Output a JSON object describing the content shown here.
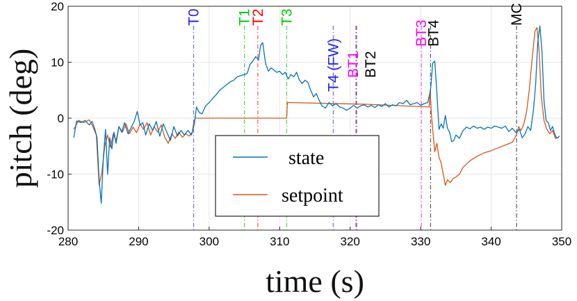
{
  "chart_data": {
    "type": "line",
    "xlabel": "time (s)",
    "ylabel": "pitch (deg)",
    "xlim": [
      280,
      350
    ],
    "ylim": [
      -20,
      20
    ],
    "xticks": [
      280,
      290,
      300,
      310,
      320,
      330,
      340,
      350
    ],
    "yticks": [
      20,
      10,
      0,
      -10,
      -20
    ],
    "grid": true,
    "legend_position": "bottom-center",
    "series": [
      {
        "name": "state",
        "color": "#0072BD",
        "x": [
          280.8,
          281.2,
          281.8,
          282.4,
          283.0,
          283.4,
          283.8,
          284.1,
          284.4,
          284.7,
          285.0,
          285.3,
          285.6,
          285.9,
          286.2,
          286.5,
          286.8,
          287.2,
          287.6,
          288.0,
          288.5,
          289.0,
          289.4,
          289.8,
          290.2,
          290.6,
          291.0,
          291.5,
          292.0,
          292.5,
          293.0,
          293.5,
          294.0,
          294.5,
          295.0,
          295.5,
          296.0,
          296.5,
          297.0,
          297.5,
          297.9,
          298.2,
          298.6,
          299.0,
          299.5,
          300.0,
          300.5,
          301.0,
          301.5,
          302.0,
          302.5,
          303.0,
          303.5,
          304.0,
          304.5,
          305.0,
          305.4,
          305.8,
          306.2,
          306.6,
          307.0,
          307.3,
          307.6,
          308.0,
          308.4,
          308.8,
          309.2,
          309.6,
          310.0,
          310.4,
          310.8,
          311.2,
          311.6,
          312.0,
          312.4,
          312.8,
          313.2,
          313.6,
          314.0,
          314.4,
          314.8,
          315.2,
          315.6,
          316.0,
          316.5,
          317.0,
          317.5,
          318.0,
          318.5,
          319.0,
          319.5,
          320.0,
          320.5,
          321.0,
          321.5,
          322.0,
          322.5,
          323.0,
          323.5,
          324.0,
          324.5,
          325.0,
          325.5,
          326.0,
          326.5,
          327.0,
          327.5,
          328.0,
          328.5,
          329.0,
          329.5,
          330.0,
          330.5,
          331.0,
          331.4,
          331.7,
          332.0,
          332.3,
          332.6,
          332.9,
          333.2,
          333.5,
          333.8,
          334.1,
          334.4,
          334.7,
          335.0,
          335.5,
          336.0,
          336.5,
          337.0,
          337.5,
          338.0,
          338.5,
          339.0,
          339.5,
          340.0,
          340.5,
          341.0,
          341.5,
          342.0,
          342.5,
          343.0,
          343.5,
          344.0,
          344.4,
          344.8,
          345.2,
          345.6,
          346.0,
          346.3,
          346.6,
          346.9,
          347.2,
          347.5,
          347.8,
          348.1,
          348.4,
          348.7,
          349.0,
          349.3,
          349.7
        ],
        "y": [
          -3.5,
          -0.5,
          -0.8,
          -0.4,
          -1.2,
          -0.6,
          -2.0,
          -3.5,
          -11.0,
          -15.2,
          -7.0,
          -2.0,
          -10.0,
          -3.5,
          -5.5,
          -2.5,
          -4.5,
          -1.5,
          -2.5,
          -0.8,
          -2.8,
          -1.5,
          -0.5,
          1.2,
          -1.2,
          -0.8,
          -3.0,
          -1.0,
          -2.2,
          -0.6,
          -3.2,
          -1.0,
          -2.5,
          -4.0,
          -1.5,
          -3.2,
          -2.2,
          -3.0,
          -2.2,
          -3.0,
          -1.0,
          2.0,
          1.0,
          0.8,
          2.2,
          2.8,
          3.5,
          4.2,
          5.0,
          5.5,
          6.0,
          6.5,
          6.8,
          7.4,
          7.6,
          7.8,
          8.0,
          9.6,
          10.2,
          11.0,
          10.4,
          13.0,
          13.5,
          9.8,
          8.4,
          9.0,
          8.6,
          8.2,
          8.4,
          7.8,
          8.2,
          7.0,
          7.8,
          7.4,
          8.2,
          6.8,
          6.2,
          6.8,
          6.4,
          5.0,
          3.8,
          4.4,
          3.2,
          2.2,
          1.8,
          2.8,
          2.2,
          2.6,
          2.0,
          1.8,
          1.4,
          1.8,
          2.3,
          1.8,
          2.2,
          2.4,
          2.0,
          2.3,
          1.9,
          2.4,
          2.1,
          2.6,
          2.0,
          2.4,
          2.2,
          2.8,
          2.6,
          3.2,
          2.4,
          2.6,
          2.8,
          2.3,
          2.6,
          2.8,
          5.0,
          9.8,
          10.2,
          4.5,
          -2.0,
          -1.0,
          -1.8,
          0.5,
          -1.8,
          -2.5,
          -4.2,
          -4.0,
          -3.0,
          -3.6,
          -2.2,
          -1.6,
          -1.9,
          -1.4,
          -1.8,
          -1.6,
          -2.0,
          -1.6,
          -1.8,
          -1.4,
          -1.6,
          -1.8,
          -1.4,
          -2.4,
          -1.8,
          -2.6,
          -2.0,
          -3.5,
          -2.8,
          -1.5,
          -2.2,
          1.5,
          6.0,
          13.5,
          16.5,
          12.0,
          3.0,
          -0.5,
          -0.8,
          -2.2,
          -1.5,
          -2.8,
          -3.6,
          -3.2
        ]
      },
      {
        "name": "setpoint",
        "color": "#D95319",
        "x": [
          280.8,
          281.5,
          282.2,
          283.0,
          283.5,
          284.0,
          284.4,
          284.8,
          285.2,
          285.6,
          286.0,
          286.4,
          286.8,
          287.2,
          287.7,
          288.2,
          288.7,
          289.2,
          289.7,
          290.2,
          290.7,
          291.2,
          291.7,
          292.2,
          292.7,
          293.2,
          293.7,
          294.2,
          294.7,
          295.2,
          295.7,
          296.2,
          296.7,
          297.2,
          297.6,
          297.8,
          298.0,
          311.0,
          311.1,
          322.0,
          331.2,
          331.35,
          331.5,
          331.7,
          332.0,
          332.3,
          332.6,
          332.9,
          333.2,
          333.5,
          333.8,
          334.2,
          334.6,
          335.0,
          335.5,
          336.0,
          337.0,
          338.0,
          339.0,
          340.0,
          341.0,
          342.0,
          343.0,
          343.5,
          343.7,
          343.9,
          344.2,
          344.6,
          345.0,
          345.4,
          345.8,
          346.2,
          346.5,
          346.8,
          347.1,
          347.5,
          347.9,
          348.3,
          348.7,
          349.1,
          349.6
        ],
        "y": [
          -2.0,
          -0.4,
          -0.8,
          -0.3,
          -1.5,
          -3.0,
          -12.0,
          -9.5,
          -5.0,
          -3.0,
          -5.2,
          -2.8,
          -4.0,
          -1.5,
          -2.5,
          -1.0,
          -2.8,
          -1.6,
          -2.6,
          -1.0,
          -2.0,
          -0.8,
          -3.0,
          -1.5,
          -2.5,
          -1.2,
          -3.4,
          -4.5,
          -2.8,
          -3.6,
          -2.5,
          -3.4,
          -2.8,
          -3.2,
          -2.5,
          -1.0,
          0.0,
          0.0,
          2.8,
          2.5,
          2.0,
          5.0,
          1.0,
          -2.0,
          -6.0,
          -4.5,
          -7.0,
          -8.0,
          -10.0,
          -12.0,
          -11.0,
          -11.5,
          -10.8,
          -10.5,
          -10.0,
          -8.8,
          -7.6,
          -6.8,
          -6.2,
          -5.8,
          -5.3,
          -4.8,
          -4.3,
          -3.2,
          -2.5,
          -1.5,
          -2.2,
          -1.2,
          1.0,
          5.0,
          10.5,
          15.5,
          16.2,
          12.0,
          4.0,
          -0.5,
          -2.0,
          -2.8,
          -2.2,
          -3.6,
          -3.4
        ]
      }
    ],
    "events": [
      {
        "label": "T0",
        "x": 297.8,
        "color": "#2020FF",
        "line_color": "#6060FF"
      },
      {
        "label": "T1",
        "x": 305.0,
        "color": "#00CC00",
        "line_color": "#33DD33"
      },
      {
        "label": "T2",
        "x": 306.9,
        "color": "#FF0000",
        "line_color": "#FF4444"
      },
      {
        "label": "T3",
        "x": 311.0,
        "color": "#00CC00",
        "line_color": "#33DD33"
      },
      {
        "label": "T4 (FW)",
        "x": 317.6,
        "color": "#2020FF",
        "line_color": "#6060FF"
      },
      {
        "label": "BT1",
        "x": 320.8,
        "color": "#FF00FF",
        "line_color": "#FF44FF"
      },
      {
        "label": "BT2",
        "x": 320.9,
        "color": "#000000",
        "line_color": "#444444"
      },
      {
        "label": "BT3",
        "x": 330.1,
        "color": "#FF00FF",
        "line_color": "#FF44FF"
      },
      {
        "label": "BT4",
        "x": 331.4,
        "color": "#000000",
        "line_color": "#444444"
      },
      {
        "label": "MC",
        "x": 343.6,
        "color": "#000000",
        "line_color": "#444444"
      }
    ]
  }
}
